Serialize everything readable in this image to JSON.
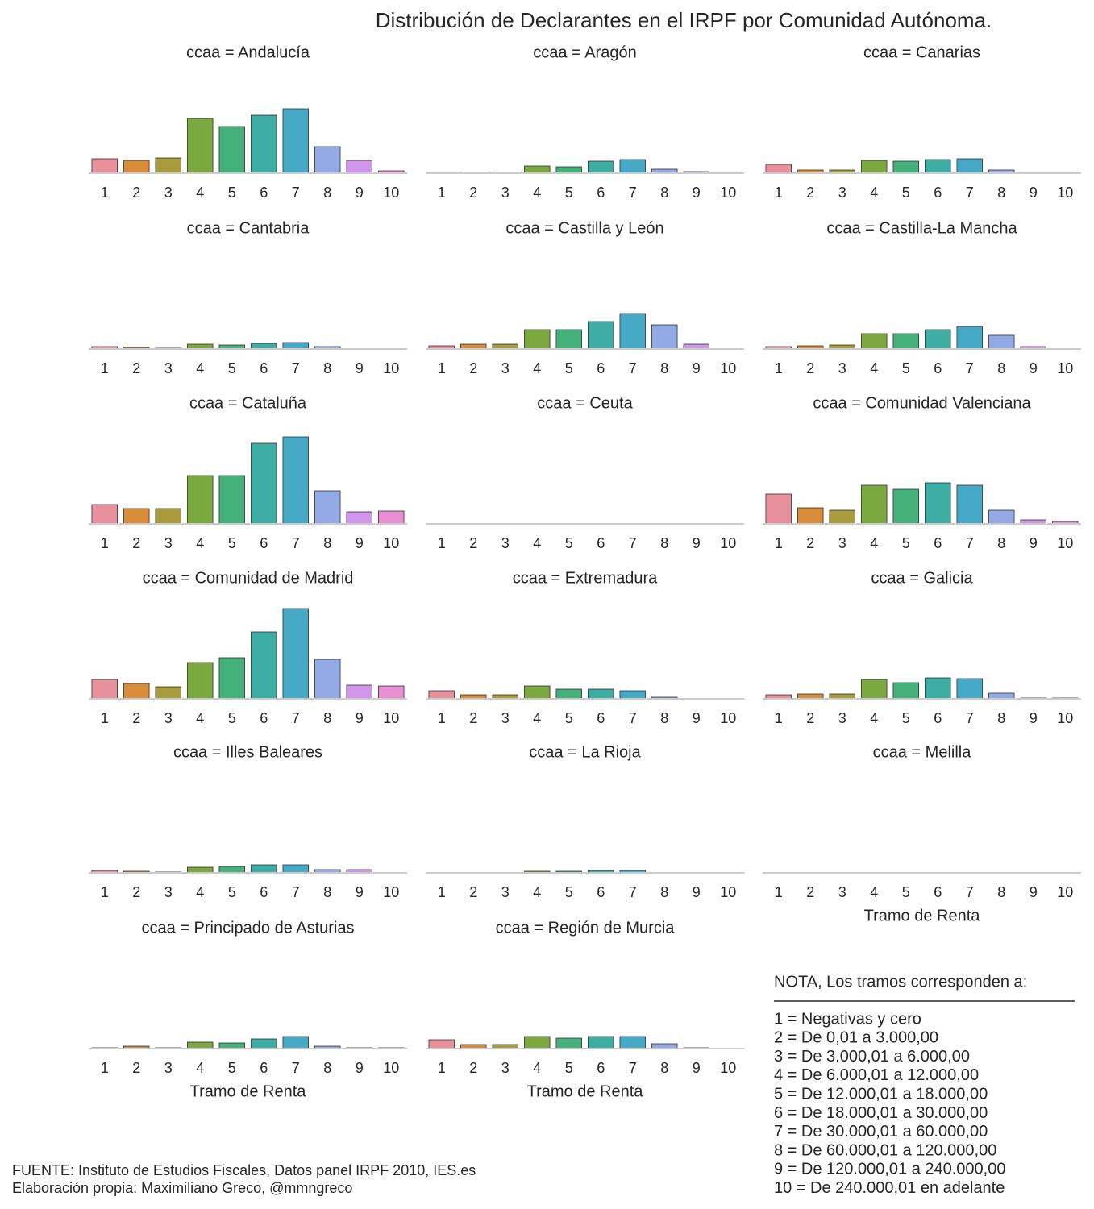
{
  "title": "Distribución de Declarantes en el IRPF por Comunidad Autónoma.",
  "source": [
    "FUENTE: Instituto de Estudios Fiscales, Datos panel IRPF 2010, IES.es",
    "Elaboración propia: Maximiliano Greco, @mmngreco"
  ],
  "note": {
    "heading": "NOTA, Los tramos corresponden a:",
    "lines": [
      "1 = Negativas y cero",
      "2 = De 0,01 a 3.000,00",
      "3 = De 3.000,01 a 6.000,00",
      "4 = De 6.000,01 a 12.000,00",
      "5 = De 12.000,01 a 18.000,00",
      "6 = De 18.000,01 a 30.000,00",
      "7 = De 30.000,01 a 60.000,00",
      "8 = De 60.000,01 a 120.000,00",
      "9 = De 120.000,01 a 240.000,00",
      "10 = De 240.000,01 en adelante"
    ]
  },
  "chart_data": [
    {
      "type": "bar",
      "title": "ccaa = Andalucía",
      "categories": [
        "1",
        "2",
        "3",
        "4",
        "5",
        "6",
        "7",
        "8",
        "9",
        "10"
      ],
      "values": [
        18,
        16,
        19,
        68,
        58,
        72,
        80,
        33,
        16,
        3
      ],
      "ylim": [
        0,
        115
      ],
      "colors": [
        "#e8919d",
        "#d98c3a",
        "#a89c3d",
        "#7ba83f",
        "#44b07a",
        "#3eaea5",
        "#46a9c7",
        "#93aae6",
        "#d295ec",
        "#e88fd4"
      ]
    },
    {
      "type": "bar",
      "title": "ccaa = Aragón",
      "categories": [
        "1",
        "2",
        "3",
        "4",
        "5",
        "6",
        "7",
        "8",
        "9",
        "10"
      ],
      "values": [
        0,
        1,
        1,
        9,
        8,
        15,
        17,
        5,
        2,
        0
      ],
      "ylim": [
        0,
        115
      ],
      "colors": [
        "#e8919d",
        "#d98c3a",
        "#a89c3d",
        "#7ba83f",
        "#44b07a",
        "#3eaea5",
        "#46a9c7",
        "#93aae6",
        "#d295ec",
        "#e88fd4"
      ]
    },
    {
      "type": "bar",
      "title": "ccaa = Canarias",
      "categories": [
        "1",
        "2",
        "3",
        "4",
        "5",
        "6",
        "7",
        "8",
        "9",
        "10"
      ],
      "values": [
        11,
        4,
        4,
        16,
        15,
        17,
        18,
        4,
        0,
        0
      ],
      "ylim": [
        0,
        115
      ],
      "colors": [
        "#e8919d",
        "#d98c3a",
        "#a89c3d",
        "#7ba83f",
        "#44b07a",
        "#3eaea5",
        "#46a9c7",
        "#93aae6",
        "#d295ec",
        "#e88fd4"
      ]
    },
    {
      "type": "bar",
      "title": "ccaa = Cantabria",
      "categories": [
        "1",
        "2",
        "3",
        "4",
        "5",
        "6",
        "7",
        "8",
        "9",
        "10"
      ],
      "values": [
        3,
        2,
        1,
        6,
        5,
        7,
        8,
        3,
        0,
        0
      ],
      "ylim": [
        0,
        115
      ],
      "colors": [
        "#e8919d",
        "#d98c3a",
        "#a89c3d",
        "#7ba83f",
        "#44b07a",
        "#3eaea5",
        "#46a9c7",
        "#93aae6",
        "#d295ec",
        "#e88fd4"
      ]
    },
    {
      "type": "bar",
      "title": "ccaa = Castilla y León",
      "categories": [
        "1",
        "2",
        "3",
        "4",
        "5",
        "6",
        "7",
        "8",
        "9",
        "10"
      ],
      "values": [
        4,
        6,
        6,
        24,
        24,
        34,
        44,
        30,
        6,
        0
      ],
      "ylim": [
        0,
        115
      ],
      "colors": [
        "#e8919d",
        "#d98c3a",
        "#a89c3d",
        "#7ba83f",
        "#44b07a",
        "#3eaea5",
        "#46a9c7",
        "#93aae6",
        "#d295ec",
        "#e88fd4"
      ]
    },
    {
      "type": "bar",
      "title": "ccaa = Castilla-La Mancha",
      "categories": [
        "1",
        "2",
        "3",
        "4",
        "5",
        "6",
        "7",
        "8",
        "9",
        "10"
      ],
      "values": [
        3,
        4,
        5,
        19,
        19,
        24,
        28,
        17,
        3,
        0
      ],
      "ylim": [
        0,
        115
      ],
      "colors": [
        "#e8919d",
        "#d98c3a",
        "#a89c3d",
        "#7ba83f",
        "#44b07a",
        "#3eaea5",
        "#46a9c7",
        "#93aae6",
        "#d295ec",
        "#e88fd4"
      ]
    },
    {
      "type": "bar",
      "title": "ccaa = Cataluña",
      "categories": [
        "1",
        "2",
        "3",
        "4",
        "5",
        "6",
        "7",
        "8",
        "9",
        "10"
      ],
      "values": [
        24,
        19,
        19,
        60,
        60,
        100,
        108,
        41,
        15,
        16
      ],
      "ylim": [
        0,
        115
      ],
      "colors": [
        "#e8919d",
        "#d98c3a",
        "#a89c3d",
        "#7ba83f",
        "#44b07a",
        "#3eaea5",
        "#46a9c7",
        "#93aae6",
        "#d295ec",
        "#e88fd4"
      ]
    },
    {
      "type": "bar",
      "title": "ccaa = Ceuta",
      "categories": [
        "1",
        "2",
        "3",
        "4",
        "5",
        "6",
        "7",
        "8",
        "9",
        "10"
      ],
      "values": [
        0,
        0,
        0,
        0,
        0,
        0,
        0,
        0,
        0,
        0
      ],
      "ylim": [
        0,
        115
      ],
      "colors": [
        "#e8919d",
        "#d98c3a",
        "#a89c3d",
        "#7ba83f",
        "#44b07a",
        "#3eaea5",
        "#46a9c7",
        "#93aae6",
        "#d295ec",
        "#e88fd4"
      ]
    },
    {
      "type": "bar",
      "title": "ccaa = Comunidad Valenciana",
      "categories": [
        "1",
        "2",
        "3",
        "4",
        "5",
        "6",
        "7",
        "8",
        "9",
        "10"
      ],
      "values": [
        37,
        20,
        17,
        48,
        43,
        51,
        48,
        17,
        5,
        3
      ],
      "ylim": [
        0,
        115
      ],
      "colors": [
        "#e8919d",
        "#d98c3a",
        "#a89c3d",
        "#7ba83f",
        "#44b07a",
        "#3eaea5",
        "#46a9c7",
        "#93aae6",
        "#d295ec",
        "#e88fd4"
      ]
    },
    {
      "type": "bar",
      "title": "ccaa = Comunidad de Madrid",
      "categories": [
        "1",
        "2",
        "3",
        "4",
        "5",
        "6",
        "7",
        "8",
        "9",
        "10"
      ],
      "values": [
        24,
        19,
        15,
        45,
        51,
        83,
        112,
        49,
        17,
        16
      ],
      "ylim": [
        0,
        115
      ],
      "colors": [
        "#e8919d",
        "#d98c3a",
        "#a89c3d",
        "#7ba83f",
        "#44b07a",
        "#3eaea5",
        "#46a9c7",
        "#93aae6",
        "#d295ec",
        "#e88fd4"
      ]
    },
    {
      "type": "bar",
      "title": "ccaa = Extremadura",
      "categories": [
        "1",
        "2",
        "3",
        "4",
        "5",
        "6",
        "7",
        "8",
        "9",
        "10"
      ],
      "values": [
        10,
        5,
        5,
        16,
        12,
        12,
        10,
        2,
        0,
        0
      ],
      "ylim": [
        0,
        115
      ],
      "colors": [
        "#e8919d",
        "#d98c3a",
        "#a89c3d",
        "#7ba83f",
        "#44b07a",
        "#3eaea5",
        "#46a9c7",
        "#93aae6",
        "#d295ec",
        "#e88fd4"
      ]
    },
    {
      "type": "bar",
      "title": "ccaa = Galicia",
      "categories": [
        "1",
        "2",
        "3",
        "4",
        "5",
        "6",
        "7",
        "8",
        "9",
        "10"
      ],
      "values": [
        5,
        6,
        6,
        24,
        20,
        26,
        25,
        7,
        1,
        1
      ],
      "ylim": [
        0,
        115
      ],
      "colors": [
        "#e8919d",
        "#d98c3a",
        "#a89c3d",
        "#7ba83f",
        "#44b07a",
        "#3eaea5",
        "#46a9c7",
        "#93aae6",
        "#d295ec",
        "#e88fd4"
      ]
    },
    {
      "type": "bar",
      "title": "ccaa = Illes Baleares",
      "categories": [
        "1",
        "2",
        "3",
        "4",
        "5",
        "6",
        "7",
        "8",
        "9",
        "10"
      ],
      "values": [
        3,
        2,
        1,
        7,
        8,
        10,
        10,
        4,
        4,
        0
      ],
      "ylim": [
        0,
        115
      ],
      "colors": [
        "#e8919d",
        "#d98c3a",
        "#a89c3d",
        "#7ba83f",
        "#44b07a",
        "#3eaea5",
        "#46a9c7",
        "#93aae6",
        "#d295ec",
        "#e88fd4"
      ]
    },
    {
      "type": "bar",
      "title": "ccaa = La Rioja",
      "categories": [
        "1",
        "2",
        "3",
        "4",
        "5",
        "6",
        "7",
        "8",
        "9",
        "10"
      ],
      "values": [
        0,
        0,
        0,
        2,
        2,
        3,
        3,
        0,
        0,
        0
      ],
      "ylim": [
        0,
        115
      ],
      "colors": [
        "#e8919d",
        "#d98c3a",
        "#a89c3d",
        "#7ba83f",
        "#44b07a",
        "#3eaea5",
        "#46a9c7",
        "#93aae6",
        "#d295ec",
        "#e88fd4"
      ]
    },
    {
      "type": "bar",
      "title": "ccaa = Melilla",
      "categories": [
        "1",
        "2",
        "3",
        "4",
        "5",
        "6",
        "7",
        "8",
        "9",
        "10"
      ],
      "values": [
        0,
        0,
        0,
        0,
        0,
        0,
        0,
        0,
        0,
        0
      ],
      "ylim": [
        0,
        115
      ],
      "xlabel": "Tramo de Renta",
      "colors": [
        "#e8919d",
        "#d98c3a",
        "#a89c3d",
        "#7ba83f",
        "#44b07a",
        "#3eaea5",
        "#46a9c7",
        "#93aae6",
        "#d295ec",
        "#e88fd4"
      ]
    },
    {
      "type": "bar",
      "title": "ccaa = Principado de Asturias",
      "categories": [
        "1",
        "2",
        "3",
        "4",
        "5",
        "6",
        "7",
        "8",
        "9",
        "10"
      ],
      "values": [
        1,
        3,
        1,
        8,
        7,
        12,
        15,
        3,
        1,
        1
      ],
      "ylim": [
        0,
        115
      ],
      "xlabel": "Tramo de Renta",
      "colors": [
        "#e8919d",
        "#d98c3a",
        "#a89c3d",
        "#7ba83f",
        "#44b07a",
        "#3eaea5",
        "#46a9c7",
        "#93aae6",
        "#d295ec",
        "#e88fd4"
      ]
    },
    {
      "type": "bar",
      "title": "ccaa = Región de Murcia",
      "categories": [
        "1",
        "2",
        "3",
        "4",
        "5",
        "6",
        "7",
        "8",
        "9",
        "10"
      ],
      "values": [
        11,
        5,
        5,
        15,
        13,
        15,
        15,
        6,
        1,
        0
      ],
      "ylim": [
        0,
        115
      ],
      "xlabel": "Tramo de Renta",
      "colors": [
        "#e8919d",
        "#d98c3a",
        "#a89c3d",
        "#7ba83f",
        "#44b07a",
        "#3eaea5",
        "#46a9c7",
        "#93aae6",
        "#d295ec",
        "#e88fd4"
      ]
    }
  ]
}
